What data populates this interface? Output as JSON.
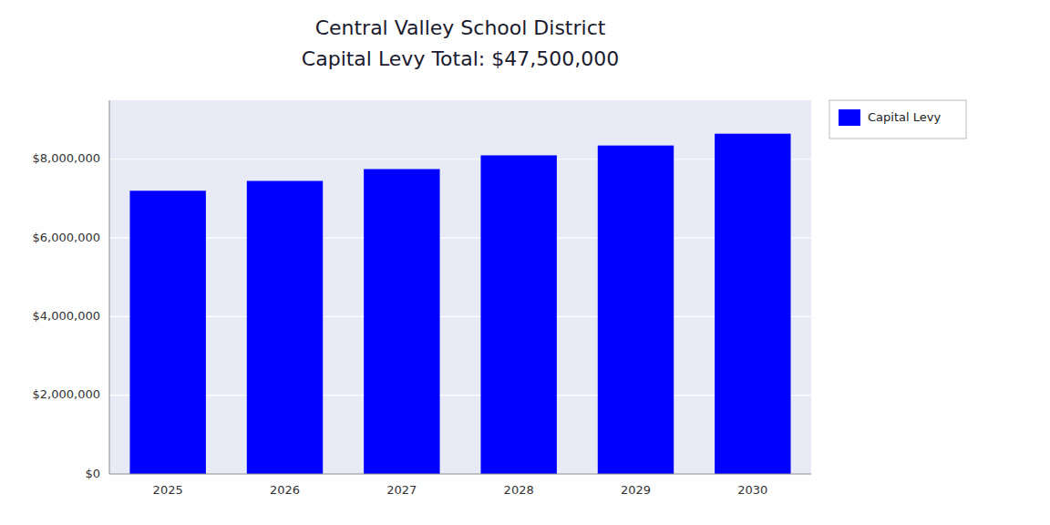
{
  "chart_data": {
    "type": "bar",
    "title": "Central Valley School District",
    "subtitle": "Capital Levy Total: $47,500,000",
    "categories": [
      "2025",
      "2026",
      "2027",
      "2028",
      "2029",
      "2030"
    ],
    "series": [
      {
        "name": "Capital Levy",
        "color": "#0000FF",
        "values": [
          7200000,
          7450000,
          7750000,
          8100000,
          8350000,
          8650000
        ]
      }
    ],
    "ylim": [
      0,
      9500000
    ],
    "yticks": [
      {
        "value": 0,
        "label": "$0"
      },
      {
        "value": 2000000,
        "label": "$2,000,000"
      },
      {
        "value": 4000000,
        "label": "$4,000,000"
      },
      {
        "value": 6000000,
        "label": "$6,000,000"
      },
      {
        "value": 8000000,
        "label": "$8,000,000"
      }
    ],
    "grid": true,
    "legend": "upper right"
  }
}
